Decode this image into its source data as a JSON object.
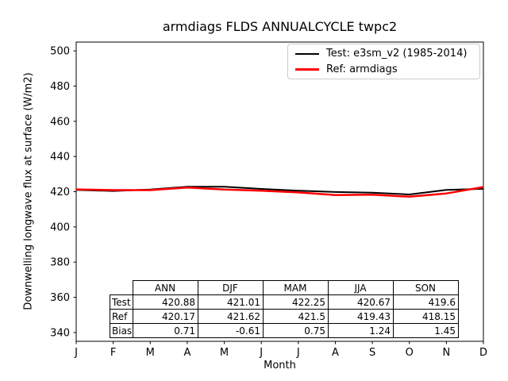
{
  "title": "armdiags FLDS ANNUALCYCLE twpc2",
  "chart_data": {
    "type": "line",
    "title": "armdiags FLDS ANNUALCYCLE twpc2",
    "x_categories": [
      "J",
      "F",
      "M",
      "A",
      "M",
      "J",
      "J",
      "A",
      "S",
      "O",
      "N",
      "D"
    ],
    "xlabel": "Month",
    "ylabel": "Downwelling longwave flux at surface (W/m2)",
    "ylim": [
      335,
      505
    ],
    "yticks": [
      340,
      360,
      380,
      400,
      420,
      440,
      460,
      480,
      500
    ],
    "grid": false,
    "legend_position": "upper right",
    "series": [
      {
        "name": "Test: e3sm_v2 (1985-2014)",
        "color": "#000000",
        "linewidth": 2,
        "values": [
          421.0,
          420.4,
          421.2,
          422.8,
          422.8,
          421.6,
          420.6,
          419.8,
          419.4,
          418.4,
          421.0,
          421.63
        ]
      },
      {
        "name": "Ref: armdiags",
        "color": "#ff0000",
        "linewidth": 2.5,
        "values": [
          421.3,
          420.9,
          420.9,
          422.4,
          421.2,
          420.6,
          419.6,
          418.1,
          418.3,
          417.15,
          419.0,
          422.66
        ]
      }
    ]
  },
  "stats_table": {
    "columns": [
      "ANN",
      "DJF",
      "MAM",
      "JJA",
      "SON"
    ],
    "rows": [
      {
        "label": "Test",
        "values": [
          "420.88",
          "421.01",
          "422.25",
          "420.67",
          "419.6"
        ]
      },
      {
        "label": "Ref",
        "values": [
          "420.17",
          "421.62",
          "421.5",
          "419.43",
          "418.15"
        ]
      },
      {
        "label": "Bias",
        "values": [
          "0.71",
          "-0.61",
          "0.75",
          "1.24",
          "1.45"
        ]
      }
    ]
  }
}
